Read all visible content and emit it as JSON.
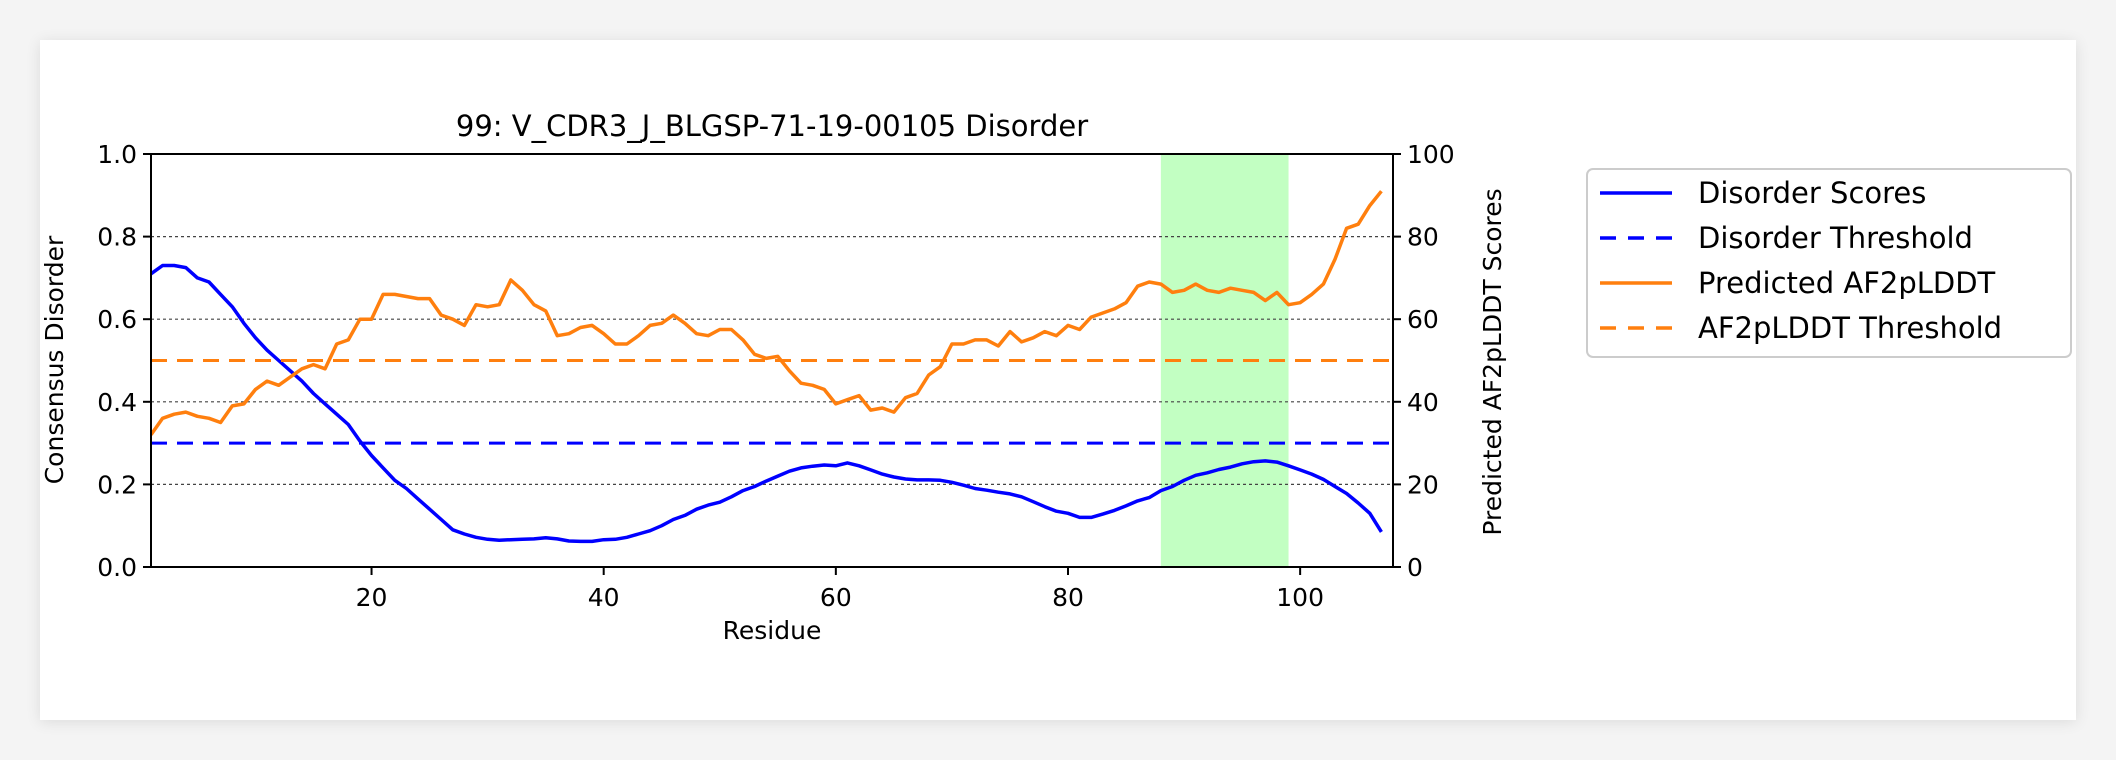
{
  "chart_data": {
    "type": "line",
    "title": "99: V_CDR3_J_BLGSP-71-19-00105 Disorder",
    "xlabel": "Residue",
    "ylabel": "Consensus Disorder",
    "y2label": "Predicted AF2pLDDT Scores",
    "xlim": [
      1,
      108
    ],
    "ylim": [
      0,
      1
    ],
    "y2lim": [
      0,
      100
    ],
    "xticks": [
      "20",
      "40",
      "60",
      "80",
      "100"
    ],
    "yticks": [
      "0.0",
      "0.2",
      "0.4",
      "0.6",
      "0.8",
      "1.0"
    ],
    "y2ticks": [
      "0",
      "20",
      "40",
      "60",
      "80",
      "100"
    ],
    "grid": "horizontal dotted",
    "legend_position": "outside right, top",
    "highlight_region": [
      88,
      99
    ],
    "series": [
      {
        "name": "Disorder Scores",
        "axis": "left",
        "color": "#0000ff",
        "style": "solid",
        "x": [
          1,
          2,
          3,
          4,
          5,
          6,
          7,
          8,
          9,
          10,
          11,
          12,
          13,
          14,
          15,
          16,
          17,
          18,
          19,
          20,
          21,
          22,
          23,
          24,
          25,
          26,
          27,
          28,
          29,
          30,
          31,
          32,
          33,
          34,
          35,
          36,
          37,
          38,
          39,
          40,
          41,
          42,
          43,
          44,
          45,
          46,
          47,
          48,
          49,
          50,
          51,
          52,
          53,
          54,
          55,
          56,
          57,
          58,
          59,
          60,
          61,
          62,
          63,
          64,
          65,
          66,
          67,
          68,
          69,
          70,
          71,
          72,
          73,
          74,
          75,
          76,
          77,
          78,
          79,
          80,
          81,
          82,
          83,
          84,
          85,
          86,
          87,
          88,
          89,
          90,
          91,
          92,
          93,
          94,
          95,
          96,
          97,
          98,
          99,
          100,
          101,
          102,
          103,
          104,
          105,
          106,
          107
        ],
        "values": [
          0.71,
          0.73,
          0.73,
          0.725,
          0.7,
          0.69,
          0.66,
          0.63,
          0.59,
          0.555,
          0.525,
          0.5,
          0.475,
          0.45,
          0.42,
          0.395,
          0.37,
          0.345,
          0.305,
          0.27,
          0.24,
          0.21,
          0.19,
          0.165,
          0.14,
          0.115,
          0.09,
          0.08,
          0.072,
          0.067,
          0.065,
          0.066,
          0.067,
          0.068,
          0.071,
          0.068,
          0.063,
          0.062,
          0.062,
          0.066,
          0.067,
          0.072,
          0.08,
          0.088,
          0.1,
          0.115,
          0.125,
          0.14,
          0.15,
          0.157,
          0.17,
          0.185,
          0.195,
          0.208,
          0.22,
          0.232,
          0.24,
          0.244,
          0.247,
          0.245,
          0.252,
          0.245,
          0.235,
          0.225,
          0.218,
          0.213,
          0.211,
          0.211,
          0.21,
          0.205,
          0.198,
          0.19,
          0.186,
          0.181,
          0.177,
          0.17,
          0.158,
          0.146,
          0.135,
          0.13,
          0.12,
          0.12,
          0.128,
          0.137,
          0.148,
          0.16,
          0.168,
          0.185,
          0.195,
          0.21,
          0.222,
          0.228,
          0.236,
          0.242,
          0.25,
          0.255,
          0.257,
          0.254,
          0.245,
          0.235,
          0.225,
          0.212,
          0.195,
          0.178,
          0.155,
          0.13,
          0.085
        ]
      },
      {
        "name": "Disorder Threshold",
        "axis": "left",
        "color": "#0000ff",
        "style": "dashed",
        "x": [
          1,
          108
        ],
        "values": [
          0.3,
          0.3
        ]
      },
      {
        "name": "Predicted AF2pLDDT",
        "axis": "right",
        "color": "#ff7f0e",
        "style": "solid",
        "x": [
          1,
          2,
          3,
          4,
          5,
          6,
          7,
          8,
          9,
          10,
          11,
          12,
          13,
          14,
          15,
          16,
          17,
          18,
          19,
          20,
          21,
          22,
          23,
          24,
          25,
          26,
          27,
          28,
          29,
          30,
          31,
          32,
          33,
          34,
          35,
          36,
          37,
          38,
          39,
          40,
          41,
          42,
          43,
          44,
          45,
          46,
          47,
          48,
          49,
          50,
          51,
          52,
          53,
          54,
          55,
          56,
          57,
          58,
          59,
          60,
          61,
          62,
          63,
          64,
          65,
          66,
          67,
          68,
          69,
          70,
          71,
          72,
          73,
          74,
          75,
          76,
          77,
          78,
          79,
          80,
          81,
          82,
          83,
          84,
          85,
          86,
          87,
          88,
          89,
          90,
          91,
          92,
          93,
          94,
          95,
          96,
          97,
          98,
          99,
          100,
          101,
          102,
          103,
          104,
          105,
          106,
          107
        ],
        "values": [
          32,
          36,
          37,
          37.5,
          36.5,
          36,
          35,
          39,
          39.5,
          43,
          45,
          44,
          46,
          48,
          49,
          48,
          54,
          55,
          60,
          60,
          66,
          66,
          65.5,
          65,
          65,
          61,
          60,
          58.5,
          63.5,
          63,
          63.5,
          69.5,
          67,
          63.5,
          62,
          56,
          56.5,
          58,
          58.5,
          56.5,
          54,
          54,
          56,
          58.5,
          59,
          61,
          59,
          56.5,
          56,
          57.5,
          57.5,
          55,
          51.5,
          50.5,
          51,
          47.5,
          44.5,
          44,
          43,
          39.5,
          40.5,
          41.5,
          38,
          38.5,
          37.5,
          41,
          42,
          46.5,
          48.5,
          54,
          54,
          55,
          55,
          53.5,
          57,
          54.5,
          55.5,
          57,
          56,
          58.5,
          57.5,
          60.5,
          61.5,
          62.5,
          64,
          68,
          69,
          68.5,
          66.5,
          67,
          68.5,
          67,
          66.5,
          67.5,
          67,
          66.5,
          64.5,
          66.5,
          63.5,
          64,
          66,
          68.5,
          74.5,
          82,
          83,
          87.5,
          91
        ]
      },
      {
        "name": "AF2pLDDT Threshold",
        "axis": "right",
        "color": "#ff7f0e",
        "style": "dashed",
        "x": [
          1,
          108
        ],
        "values": [
          50,
          50
        ]
      }
    ]
  }
}
